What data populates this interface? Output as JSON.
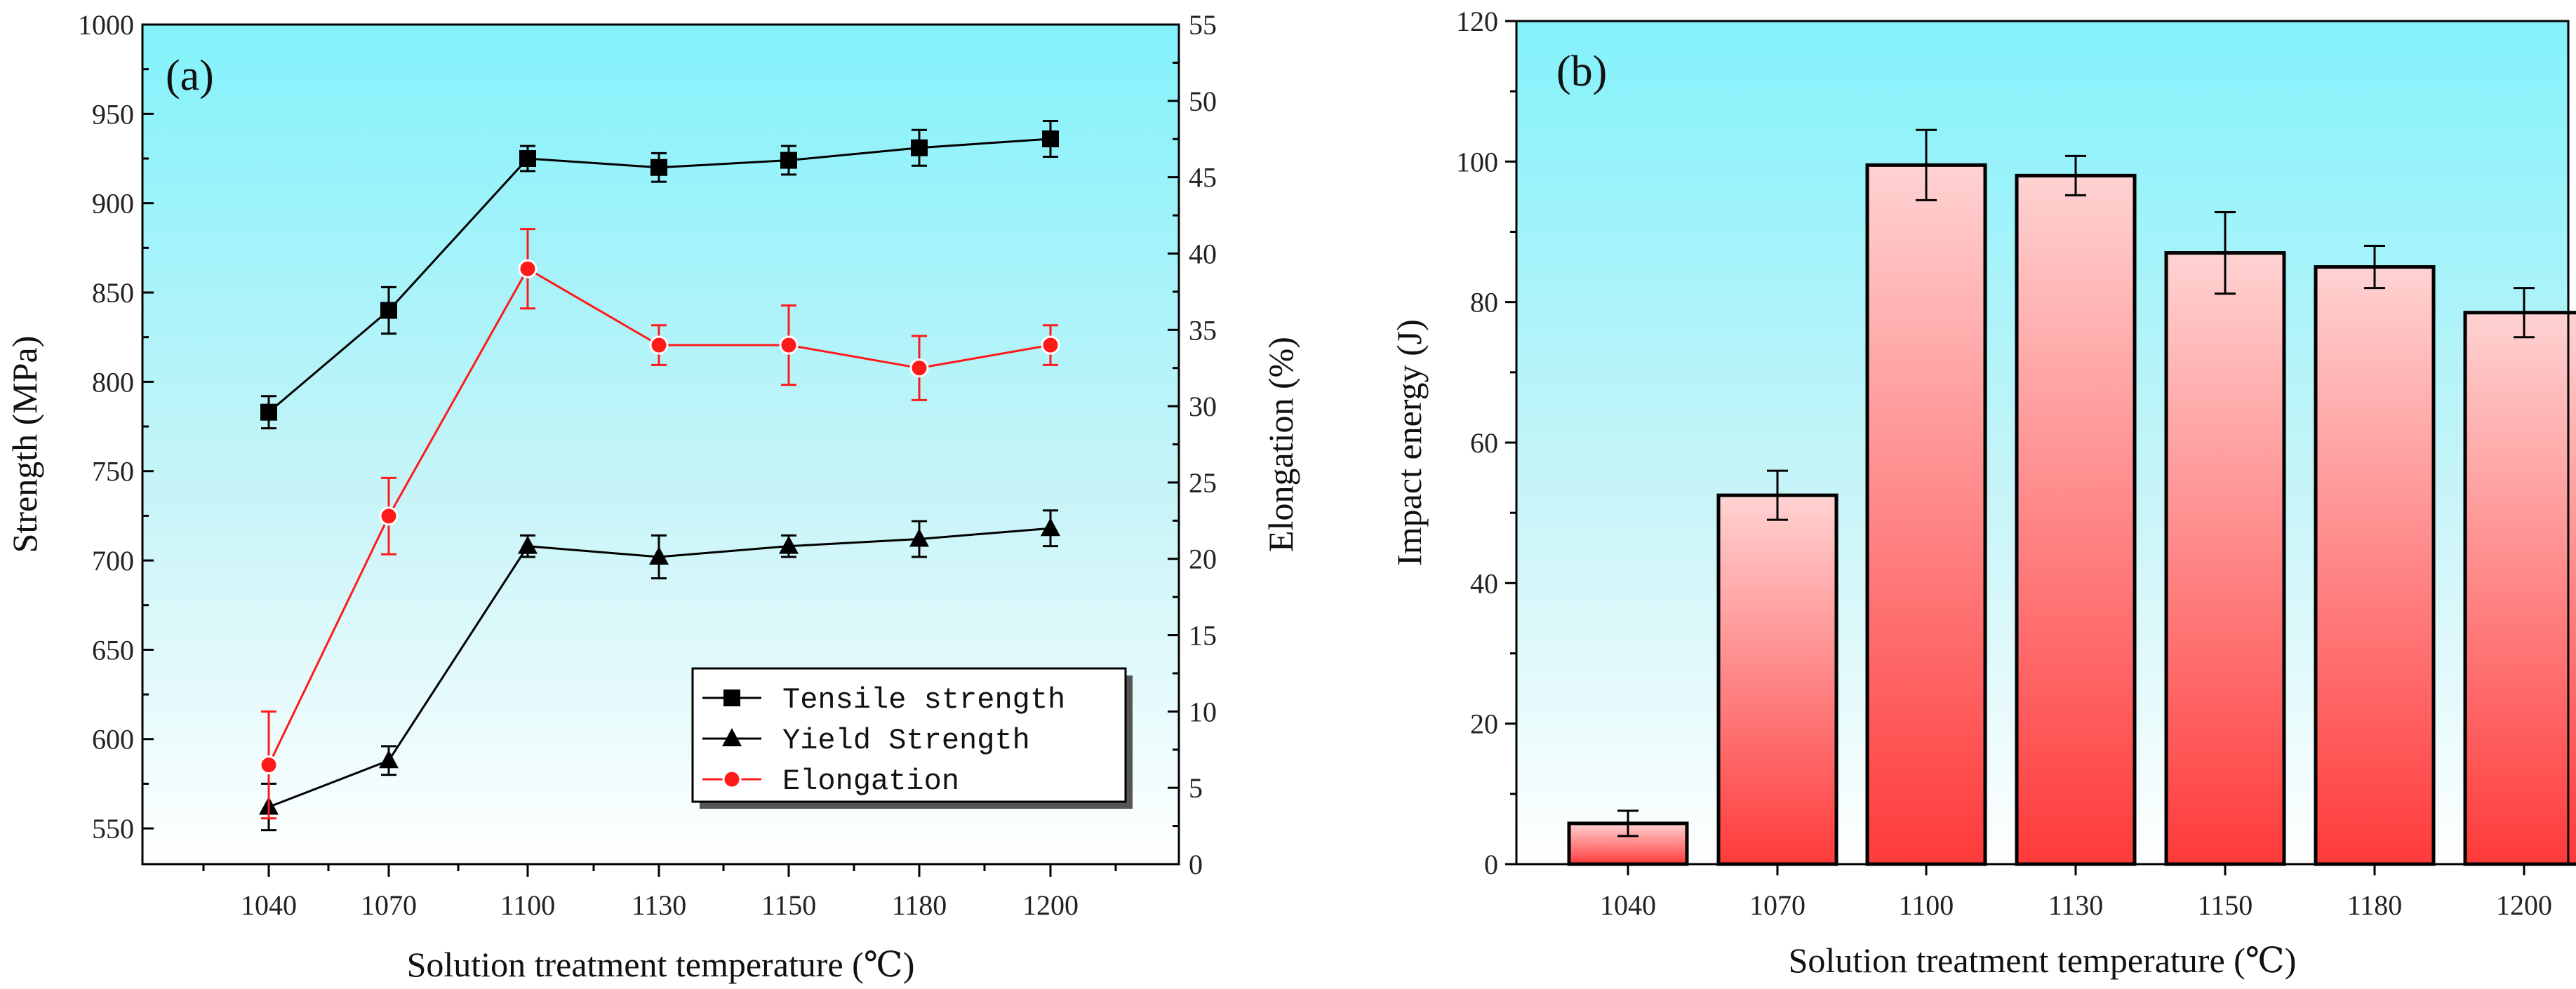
{
  "chart_data": [
    {
      "panel": "(a)",
      "type": "line",
      "xlabel": "Solution treatment temperature (℃)",
      "ylabel": "Strength (MPa)",
      "y2label": "Elongation (%)",
      "categories": [
        "1040",
        "1070",
        "1100",
        "1130",
        "1150",
        "1180",
        "1200"
      ],
      "ylim": [
        530,
        1000
      ],
      "yticks": [
        550,
        600,
        650,
        700,
        750,
        800,
        850,
        900,
        950,
        1000
      ],
      "y2lim": [
        0,
        55
      ],
      "y2ticks": [
        0,
        5,
        10,
        15,
        20,
        25,
        30,
        35,
        40,
        45,
        50,
        55
      ],
      "legend_position": "bottom-right",
      "series": [
        {
          "name": "Tensile strength",
          "axis": "left",
          "marker": "square",
          "color": "#000000",
          "values": [
            783,
            840,
            925,
            920,
            924,
            931,
            936
          ],
          "errors": [
            9,
            13,
            7,
            8,
            8,
            10,
            10
          ]
        },
        {
          "name": "Yield Strength",
          "axis": "left",
          "marker": "triangle",
          "color": "#000000",
          "values": [
            562,
            588,
            708,
            702,
            708,
            712,
            718
          ],
          "errors": [
            13,
            8,
            6,
            12,
            6,
            10,
            10
          ]
        },
        {
          "name": "Elongation",
          "axis": "right",
          "marker": "circle",
          "color": "#ff1a1a",
          "values": [
            6.5,
            22.8,
            39,
            34,
            34,
            32.5,
            34
          ],
          "errors": [
            3.5,
            2.5,
            2.6,
            1.3,
            2.6,
            2.1,
            1.3
          ]
        }
      ]
    },
    {
      "panel": "(b)",
      "type": "bar",
      "xlabel": "Solution treatment temperature (℃)",
      "ylabel": "Impact energy (J)",
      "categories": [
        "1040",
        "1070",
        "1100",
        "1130",
        "1150",
        "1180",
        "1200"
      ],
      "values": [
        5.8,
        52.5,
        99.5,
        98,
        87,
        85,
        78.5
      ],
      "errors": [
        1.8,
        3.5,
        5,
        2.8,
        5.8,
        3,
        3.5
      ],
      "ylim": [
        0,
        120
      ],
      "yticks": [
        0,
        20,
        40,
        60,
        80,
        100,
        120
      ],
      "bar_color": "#ff3a3a"
    }
  ]
}
